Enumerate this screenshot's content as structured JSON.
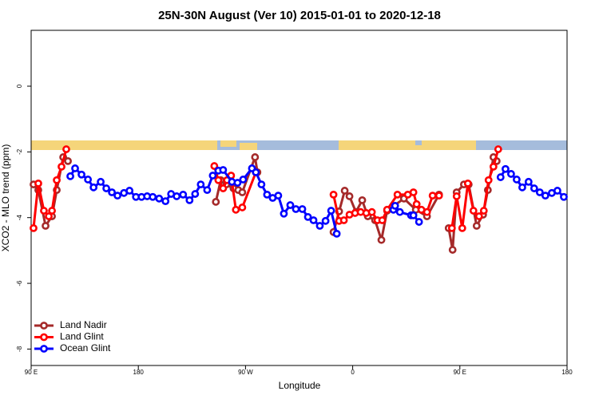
{
  "chart_data": {
    "type": "line",
    "title": "25N-30N August (Ver 10)   2015-01-01 to 2020-12-18",
    "x_label": "Longitude",
    "y_label": "XCO2 - MLO trend (ppm)",
    "xlim": [
      90,
      540
    ],
    "xticks": [
      {
        "value": 90,
        "label": "90 E"
      },
      {
        "value": 180,
        "label": "180"
      },
      {
        "value": 270,
        "label": "90 W"
      },
      {
        "value": 360,
        "label": "0"
      },
      {
        "value": 450,
        "label": "90 E"
      },
      {
        "value": 540,
        "label": "180"
      }
    ],
    "ylim": [
      -8.5,
      1.7
    ],
    "yticks": [
      0,
      -2,
      -4,
      -6,
      -8
    ],
    "legend": "bottom-left",
    "series": [
      {
        "name": "Land Nadir",
        "color": "#a52a2a",
        "x": [
          92.0,
          96.0,
          102.1,
          107.5,
          111.5,
          116.9,
          120.9,
          null,
          245.1,
          249.2,
          253.9,
          259.9,
          263.9,
          267.3,
          278.0,
          280.0,
          null,
          343.9,
          348.6,
          353.3,
          357.3,
          362.7,
          368.0,
          372.7,
          378.8,
          384.1,
          388.9,
          403.0,
          413.0,
          422.4,
          432.5,
          null,
          440.6,
          443.9,
          447.3,
          453.4,
          457.4,
          464.1,
          469.5,
          473.5,
          478.2,
          480.9
        ],
        "values": [
          -2.99,
          -3.16,
          -4.25,
          -3.96,
          -3.16,
          -2.16,
          -2.28,
          null,
          -3.52,
          -2.86,
          -2.99,
          -3.11,
          -3.16,
          -3.23,
          -2.16,
          -2.62,
          null,
          -4.44,
          -3.81,
          -3.18,
          -3.35,
          -3.83,
          -3.47,
          -3.96,
          -4.08,
          -4.68,
          -3.79,
          -3.42,
          -3.76,
          -3.96,
          -3.3,
          null,
          -4.32,
          -4.98,
          -3.23,
          -2.99,
          -2.99,
          -4.25,
          -3.91,
          -3.16,
          -2.16,
          -2.28
        ]
      },
      {
        "name": "Land Glint",
        "color": "#ff0000",
        "x": [
          92.0,
          96.0,
          100.7,
          104.8,
          107.5,
          111.5,
          115.5,
          119.5,
          null,
          243.8,
          247.2,
          251.2,
          254.5,
          257.9,
          261.9,
          267.3,
          278.7,
          null,
          343.9,
          348.6,
          352.6,
          357.3,
          362.0,
          366.7,
          371.4,
          376.1,
          380.8,
          384.8,
          388.9,
          397.6,
          406.3,
          411.0,
          413.7,
          417.7,
          422.4,
          427.1,
          432.5,
          null,
          443.3,
          447.3,
          452.0,
          456.7,
          461.4,
          466.1,
          470.1,
          474.1,
          478.2,
          482.2
        ],
        "values": [
          -4.32,
          -2.96,
          -3.79,
          -3.96,
          -3.79,
          -2.86,
          -2.45,
          -1.92,
          null,
          -2.43,
          -2.86,
          -3.11,
          -2.86,
          -2.72,
          -3.76,
          -3.69,
          -2.62,
          null,
          -3.3,
          -4.1,
          -4.08,
          -3.91,
          -3.86,
          -3.83,
          -3.86,
          -3.83,
          -4.08,
          -4.08,
          -3.76,
          -3.3,
          -3.3,
          -3.23,
          -3.59,
          -3.76,
          -3.83,
          -3.33,
          -3.33,
          null,
          -4.32,
          -3.35,
          -4.32,
          -2.96,
          -3.79,
          -3.96,
          -3.79,
          -2.86,
          -2.45,
          -1.92
        ]
      },
      {
        "name": "Ocean Glint",
        "color": "#0000ff",
        "x": [
          122.9,
          126.9,
          132.3,
          137.7,
          142.4,
          148.4,
          153.1,
          157.8,
          162.5,
          167.9,
          172.6,
          178.0,
          182.7,
          187.4,
          192.1,
          197.5,
          202.8,
          207.5,
          212.2,
          217.6,
          223.0,
          227.7,
          232.4,
          237.8,
          242.5,
          247.2,
          251.2,
          258.6,
          263.3,
          268.0,
          275.4,
          278.7,
          283.4,
          288.1,
          292.8,
          297.5,
          302.2,
          307.6,
          312.3,
          317.7,
          322.4,
          327.1,
          332.4,
          337.2,
          341.9,
          346.6,
          null,
          394.2,
          395.6,
          399.6,
          409.0,
          411.0,
          415.7,
          null,
          484.2,
          488.3,
          493.0,
          497.7,
          502.4,
          507.7,
          512.4,
          517.1,
          521.8,
          527.2,
          531.9,
          537.3
        ],
        "values": [
          -2.74,
          -2.5,
          -2.69,
          -2.84,
          -3.08,
          -2.91,
          -3.11,
          -3.23,
          -3.33,
          -3.25,
          -3.18,
          -3.37,
          -3.37,
          -3.35,
          -3.37,
          -3.42,
          -3.5,
          -3.28,
          -3.35,
          -3.3,
          -3.47,
          -3.28,
          -2.99,
          -3.16,
          -2.72,
          -2.57,
          -2.55,
          -2.91,
          -2.94,
          -2.84,
          -2.5,
          -2.62,
          -2.99,
          -3.3,
          -3.4,
          -3.33,
          -3.88,
          -3.62,
          -3.74,
          -3.74,
          -3.98,
          -4.08,
          -4.25,
          -4.1,
          -3.79,
          -4.49,
          null,
          -3.76,
          -3.64,
          -3.83,
          -3.93,
          -3.93,
          -4.13,
          null,
          -2.77,
          -2.52,
          -2.67,
          -2.84,
          -3.08,
          -2.91,
          -3.11,
          -3.23,
          -3.33,
          -3.25,
          -3.18,
          -3.37
        ]
      }
    ]
  }
}
